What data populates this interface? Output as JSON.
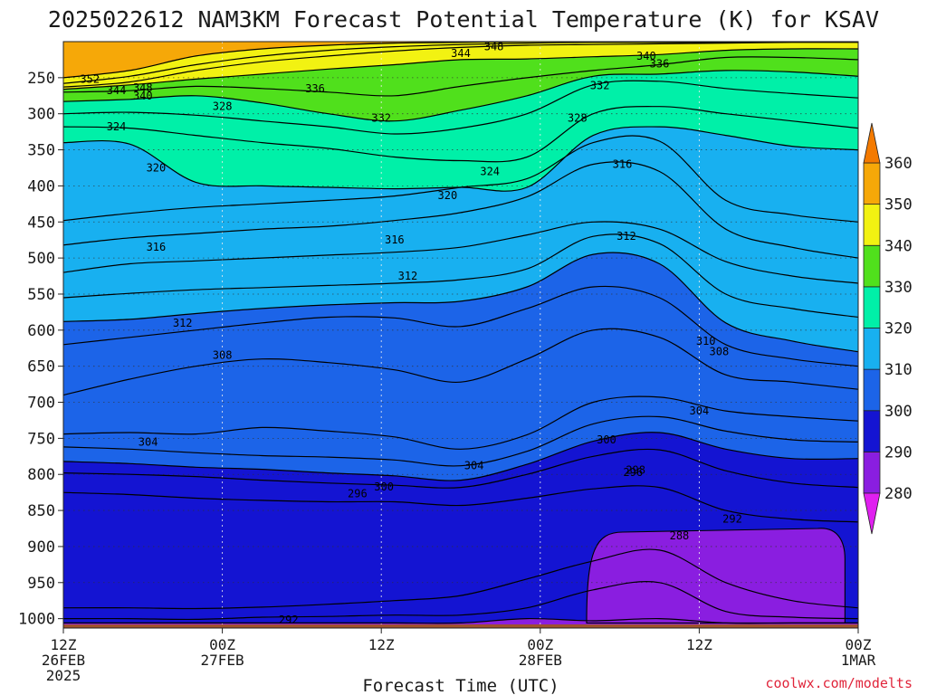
{
  "chart_data": {
    "type": "heatmap",
    "title": "2025022612 NAM3KM Forecast Potential Temperature (K) for KSAV",
    "xlabel": "Forecast Time (UTC)",
    "ylabel": "",
    "x_ticks": [
      {
        "hours": 0,
        "lines": [
          "12Z",
          "26FEB",
          "2025"
        ]
      },
      {
        "hours": 12,
        "lines": [
          "00Z",
          "27FEB"
        ]
      },
      {
        "hours": 24,
        "lines": [
          "12Z"
        ]
      },
      {
        "hours": 36,
        "lines": [
          "00Z",
          "28FEB"
        ]
      },
      {
        "hours": 48,
        "lines": [
          "12Z"
        ]
      },
      {
        "hours": 60,
        "lines": [
          "00Z",
          "1MAR"
        ]
      }
    ],
    "x_range_hours": [
      0,
      60
    ],
    "y_axis": "pressure (hPa), inverted",
    "y_ticks": [
      250,
      300,
      350,
      400,
      450,
      500,
      550,
      600,
      650,
      700,
      750,
      800,
      850,
      900,
      950,
      1000
    ],
    "y_range": [
      200,
      1013
    ],
    "grid": true,
    "colorbar": {
      "ticks": [
        280,
        290,
        300,
        310,
        320,
        330,
        340,
        350,
        360
      ],
      "bands": [
        {
          "from": 275,
          "to": 280,
          "color": "#e020f0"
        },
        {
          "from": 280,
          "to": 290,
          "color": "#8a1ee0"
        },
        {
          "from": 290,
          "to": 300,
          "color": "#1414d2"
        },
        {
          "from": 300,
          "to": 310,
          "color": "#1c64e8"
        },
        {
          "from": 310,
          "to": 320,
          "color": "#18b0f0"
        },
        {
          "from": 320,
          "to": 330,
          "color": "#00f0a8"
        },
        {
          "from": 330,
          "to": 340,
          "color": "#50e01c"
        },
        {
          "from": 340,
          "to": 350,
          "color": "#f2f212"
        },
        {
          "from": 350,
          "to": 360,
          "color": "#f6a808"
        },
        {
          "from": 360,
          "to": 365,
          "color": "#f47a00"
        }
      ]
    },
    "isotherms": [
      {
        "theta": 290,
        "p": [
          1006,
          1006,
          1006,
          1006,
          1006,
          1006,
          1006,
          1000,
          1003,
          1000,
          1006,
          1006,
          1006
        ],
        "label": null
      },
      {
        "theta": 292,
        "p": [
          1000,
          1000,
          1001,
          998,
          997,
          995,
          995,
          985,
          960,
          950,
          990,
          998,
          1000
        ],
        "label": {
          "text": "292",
          "x": 17,
          "p": 1002
        }
      },
      {
        "theta": 294,
        "p": [
          985,
          985,
          986,
          984,
          980,
          975,
          968,
          945,
          920,
          905,
          950,
          975,
          985
        ],
        "label": null
      },
      {
        "theta": 296,
        "p": [
          825,
          828,
          833,
          836,
          838,
          838,
          843,
          833,
          820,
          818,
          850,
          862,
          866
        ],
        "label": {
          "text": "296",
          "x": 22.2,
          "p": 827
        }
      },
      {
        "theta": 298,
        "p": [
          798,
          800,
          803,
          808,
          812,
          815,
          818,
          800,
          775,
          766,
          795,
          812,
          818
        ],
        "label": {
          "text": "298",
          "x": 43.2,
          "p": 794
        }
      },
      {
        "theta": 300,
        "p": [
          782,
          785,
          790,
          793,
          798,
          802,
          808,
          786,
          754,
          742,
          765,
          778,
          778
        ],
        "label": {
          "text": "300",
          "x": 24.2,
          "p": 817
        }
      },
      {
        "theta": 302,
        "p": [
          762,
          765,
          770,
          774,
          776,
          780,
          788,
          768,
          730,
          720,
          740,
          752,
          755
        ],
        "label": null
      },
      {
        "theta": 304,
        "p": [
          744,
          742,
          744,
          735,
          740,
          748,
          765,
          745,
          700,
          693,
          712,
          720,
          726
        ],
        "label": {
          "text": "304",
          "x": 6.4,
          "p": 755
        }
      },
      {
        "theta": 306,
        "p": [
          690,
          668,
          650,
          640,
          645,
          655,
          672,
          640,
          600,
          610,
          662,
          672,
          682
        ],
        "label": null
      },
      {
        "theta": 308,
        "p": [
          620,
          610,
          600,
          590,
          582,
          583,
          595,
          570,
          540,
          555,
          620,
          640,
          650
        ],
        "label": {
          "text": "308",
          "x": 12,
          "p": 635
        }
      },
      {
        "theta": 310,
        "p": [
          588,
          585,
          577,
          570,
          565,
          562,
          560,
          540,
          495,
          508,
          590,
          615,
          630
        ],
        "label": {
          "text": "310",
          "x": 48.5,
          "p": 615
        }
      },
      {
        "theta": 312,
        "p": [
          555,
          549,
          544,
          541,
          538,
          535,
          530,
          515,
          470,
          480,
          550,
          570,
          582
        ],
        "label": {
          "text": "312",
          "x": 9,
          "p": 590
        }
      },
      {
        "theta": 314,
        "p": [
          520,
          508,
          504,
          500,
          496,
          492,
          485,
          468,
          450,
          460,
          505,
          525,
          535
        ],
        "label": null
      },
      {
        "theta": 316,
        "p": [
          482,
          472,
          466,
          460,
          456,
          448,
          437,
          415,
          370,
          380,
          460,
          485,
          500
        ],
        "label": {
          "text": "316",
          "x": 7,
          "p": 485
        }
      },
      {
        "theta": 318,
        "p": [
          448,
          438,
          430,
          425,
          420,
          414,
          402,
          390,
          340,
          338,
          420,
          440,
          450
        ],
        "label": null
      },
      {
        "theta": 320,
        "p": [
          340,
          342,
          395,
          400,
          402,
          404,
          402,
          402,
          330,
          318,
          330,
          345,
          350
        ],
        "label": {
          "text": "320",
          "x": 7,
          "p": 375
        }
      },
      {
        "theta": 324,
        "p": [
          318,
          320,
          330,
          340,
          348,
          360,
          365,
          360,
          300,
          290,
          300,
          310,
          320
        ],
        "label": {
          "text": "324",
          "x": 4,
          "p": 318
        }
      },
      {
        "theta": 328,
        "p": [
          300,
          298,
          302,
          310,
          318,
          328,
          320,
          300,
          260,
          255,
          265,
          272,
          278
        ],
        "label": {
          "text": "328",
          "x": 12,
          "p": 290
        }
      },
      {
        "theta": 332,
        "p": [
          283,
          280,
          275,
          285,
          300,
          310,
          295,
          275,
          248,
          245,
          240,
          242,
          248
        ],
        "label": {
          "text": "332",
          "x": 24,
          "p": 306
        }
      },
      {
        "theta": 336,
        "p": [
          270,
          268,
          262,
          265,
          270,
          275,
          262,
          250,
          240,
          232,
          222,
          222,
          225
        ],
        "label": {
          "text": "336",
          "x": 19,
          "p": 265
        }
      },
      {
        "theta": 340,
        "p": [
          266,
          260,
          252,
          245,
          238,
          232,
          225,
          224,
          221,
          218,
          212,
          210,
          210
        ],
        "label": {
          "text": "340",
          "x": 6,
          "p": 275
        }
      },
      {
        "theta": 344,
        "p": [
          263,
          256,
          240,
          228,
          220,
          213,
          208,
          205,
          204,
          203,
          202,
          201,
          201
        ],
        "label": {
          "text": "344",
          "x": 4,
          "p": 268
        }
      },
      {
        "theta": 348,
        "p": [
          258,
          248,
          232,
          220,
          212,
          207,
          204,
          202,
          201,
          201,
          201,
          200,
          200
        ],
        "label": {
          "text": "348",
          "x": 6,
          "p": 264
        }
      },
      {
        "theta": 352,
        "p": [
          250,
          240,
          220,
          210,
          205,
          202,
          201,
          200,
          200,
          200,
          200,
          200,
          200
        ],
        "label": {
          "text": "352",
          "x": 2,
          "p": 252
        }
      }
    ],
    "extra_labels": [
      {
        "text": "332",
        "x": 40.5,
        "p": 261
      },
      {
        "text": "336",
        "x": 45,
        "p": 231
      },
      {
        "text": "340",
        "x": 44,
        "p": 220
      },
      {
        "text": "344",
        "x": 30,
        "p": 216
      },
      {
        "text": "348",
        "x": 32.5,
        "p": 207
      },
      {
        "text": "328",
        "x": 38.8,
        "p": 306
      },
      {
        "text": "324",
        "x": 32.2,
        "p": 380
      },
      {
        "text": "320",
        "x": 29,
        "p": 413
      },
      {
        "text": "316",
        "x": 25,
        "p": 475
      },
      {
        "text": "312",
        "x": 26,
        "p": 525
      },
      {
        "text": "316",
        "x": 42.2,
        "p": 370
      },
      {
        "text": "312",
        "x": 42.5,
        "p": 470
      },
      {
        "text": "308",
        "x": 49.5,
        "p": 630
      },
      {
        "text": "304",
        "x": 48,
        "p": 712
      },
      {
        "text": "304",
        "x": 31,
        "p": 788
      },
      {
        "text": "300",
        "x": 41,
        "p": 752
      },
      {
        "text": "296",
        "x": 43,
        "p": 797
      },
      {
        "text": "292",
        "x": 50.5,
        "p": 862
      },
      {
        "text": "288",
        "x": 46.5,
        "p": 885
      }
    ],
    "cold_pool": {
      "theta": 288,
      "x_start": 39.5,
      "x_end": 59,
      "p_top": 880,
      "color": "#8a1ee0"
    },
    "ground": {
      "color": "#a0522d",
      "p_top": 1008
    }
  },
  "credit": "coolwx.com/modelts"
}
